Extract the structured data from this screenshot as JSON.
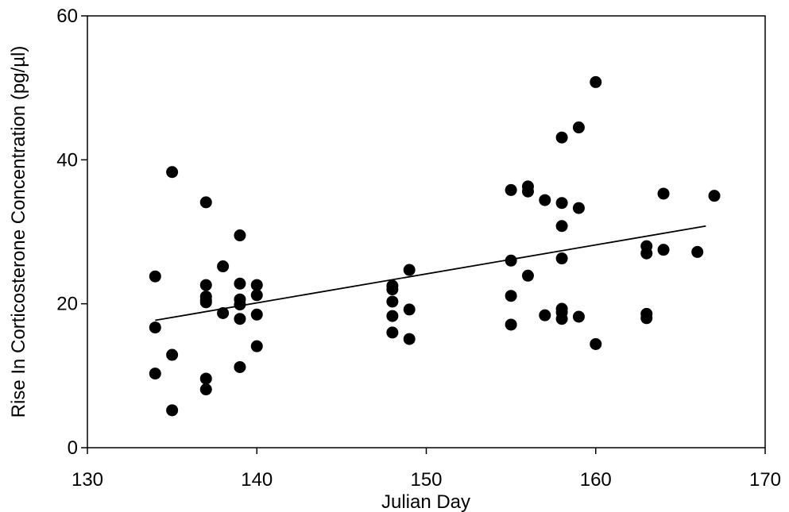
{
  "chart_data": {
    "type": "scatter",
    "title": "",
    "xlabel": "Julian Day",
    "ylabel": "Rise In Corticosterone Concentration (pg/µl)",
    "xlim": [
      130,
      170
    ],
    "ylim": [
      0,
      60
    ],
    "xticks": [
      130,
      140,
      150,
      160,
      170
    ],
    "yticks": [
      0,
      20,
      40,
      60
    ],
    "grid": false,
    "legend": "none",
    "marker_color": "#000000",
    "series": [
      {
        "x": [
          134,
          134,
          134,
          135,
          135,
          135,
          137,
          137,
          137,
          137,
          137,
          137,
          137,
          138,
          138,
          139,
          139,
          139,
          139,
          139,
          139,
          140,
          140,
          140,
          140,
          148,
          148,
          148,
          148,
          148,
          149,
          149,
          149,
          155,
          155,
          155,
          155,
          156,
          156,
          156,
          157,
          157,
          158,
          158,
          158,
          158,
          158,
          158,
          158,
          159,
          159,
          159,
          160,
          160,
          163,
          163,
          163,
          163,
          164,
          164,
          166,
          167
        ],
        "y": [
          23.8,
          16.7,
          10.3,
          38.3,
          12.9,
          5.2,
          34.1,
          22.6,
          21.0,
          20.2,
          9.6,
          8.1,
          20.5,
          25.2,
          18.7,
          29.5,
          22.8,
          20.6,
          19.9,
          17.9,
          11.2,
          22.6,
          21.2,
          18.5,
          14.1,
          22.5,
          20.3,
          18.3,
          16.0,
          22.0,
          24.7,
          19.2,
          15.1,
          35.8,
          26.0,
          21.1,
          17.1,
          36.3,
          35.6,
          23.9,
          34.4,
          18.4,
          43.1,
          34.0,
          30.8,
          26.3,
          19.3,
          17.9,
          18.8,
          44.5,
          33.3,
          18.2,
          50.8,
          14.4,
          28.0,
          27.0,
          18.6,
          18.0,
          35.3,
          27.5,
          27.2,
          35.0
        ]
      }
    ],
    "trend_line": {
      "x": [
        134,
        166.5
      ],
      "y": [
        17.7,
        30.8
      ]
    }
  }
}
